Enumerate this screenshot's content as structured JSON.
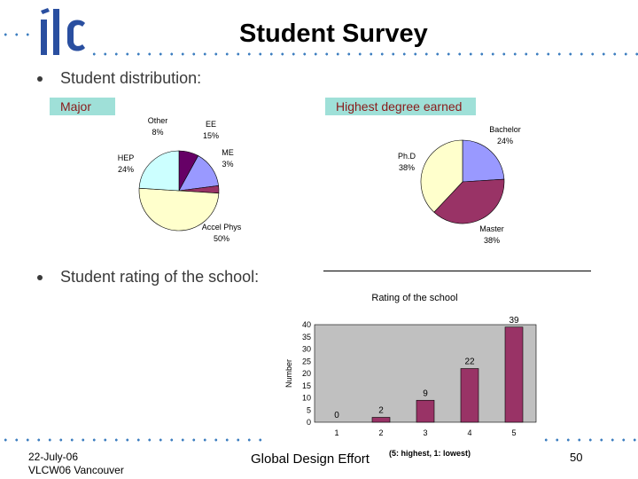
{
  "slide": {
    "title": "Student Survey",
    "bullet1": "Student distribution:",
    "bullet2": "Student rating of the school:",
    "colors": {
      "accent_dots": "#3f7fc0",
      "label_box": "#9fe0d8",
      "label_text": "#8a1a1a"
    }
  },
  "logo": {
    "text": "ilc",
    "icon": "ilc-logo-icon"
  },
  "footer": {
    "date": "22-July-06",
    "event": "VLCW06 Vancouver",
    "center": "Global Design Effort",
    "page": "50"
  },
  "chart_data": [
    {
      "type": "pie",
      "title": "Major",
      "slices": [
        {
          "label": "Other",
          "value": 8,
          "display": "8%",
          "color": "#660066"
        },
        {
          "label": "EE",
          "value": 15,
          "display": "15%",
          "color": "#9999ff"
        },
        {
          "label": "ME",
          "value": 3,
          "display": "3%",
          "color": "#993366"
        },
        {
          "label": "Accel Phys",
          "value": 50,
          "display": "50%",
          "color": "#ffffcc"
        },
        {
          "label": "HEP",
          "value": 24,
          "display": "24%",
          "color": "#ccffff"
        }
      ]
    },
    {
      "type": "pie",
      "title": "Highest degree earned",
      "slices": [
        {
          "label": "Bachelor",
          "value": 24,
          "display": "24%",
          "color": "#9999ff"
        },
        {
          "label": "Master",
          "value": 38,
          "display": "38%",
          "color": "#993366"
        },
        {
          "label": "Ph.D",
          "value": 38,
          "display": "38%",
          "color": "#ffffcc"
        }
      ]
    },
    {
      "type": "bar",
      "title": "Rating of the school",
      "categories": [
        "1",
        "2",
        "3",
        "4",
        "5"
      ],
      "values": [
        0,
        2,
        9,
        22,
        39
      ],
      "xlabel": "(5: highest, 1: lowest)",
      "ylabel": "Number",
      "ylim": [
        0,
        40
      ],
      "yticks": [
        "0",
        "5",
        "10",
        "15",
        "20",
        "25",
        "30",
        "35",
        "40"
      ],
      "bar_color": "#993366",
      "plot_bg": "#c0c0c0",
      "grid": false
    }
  ]
}
